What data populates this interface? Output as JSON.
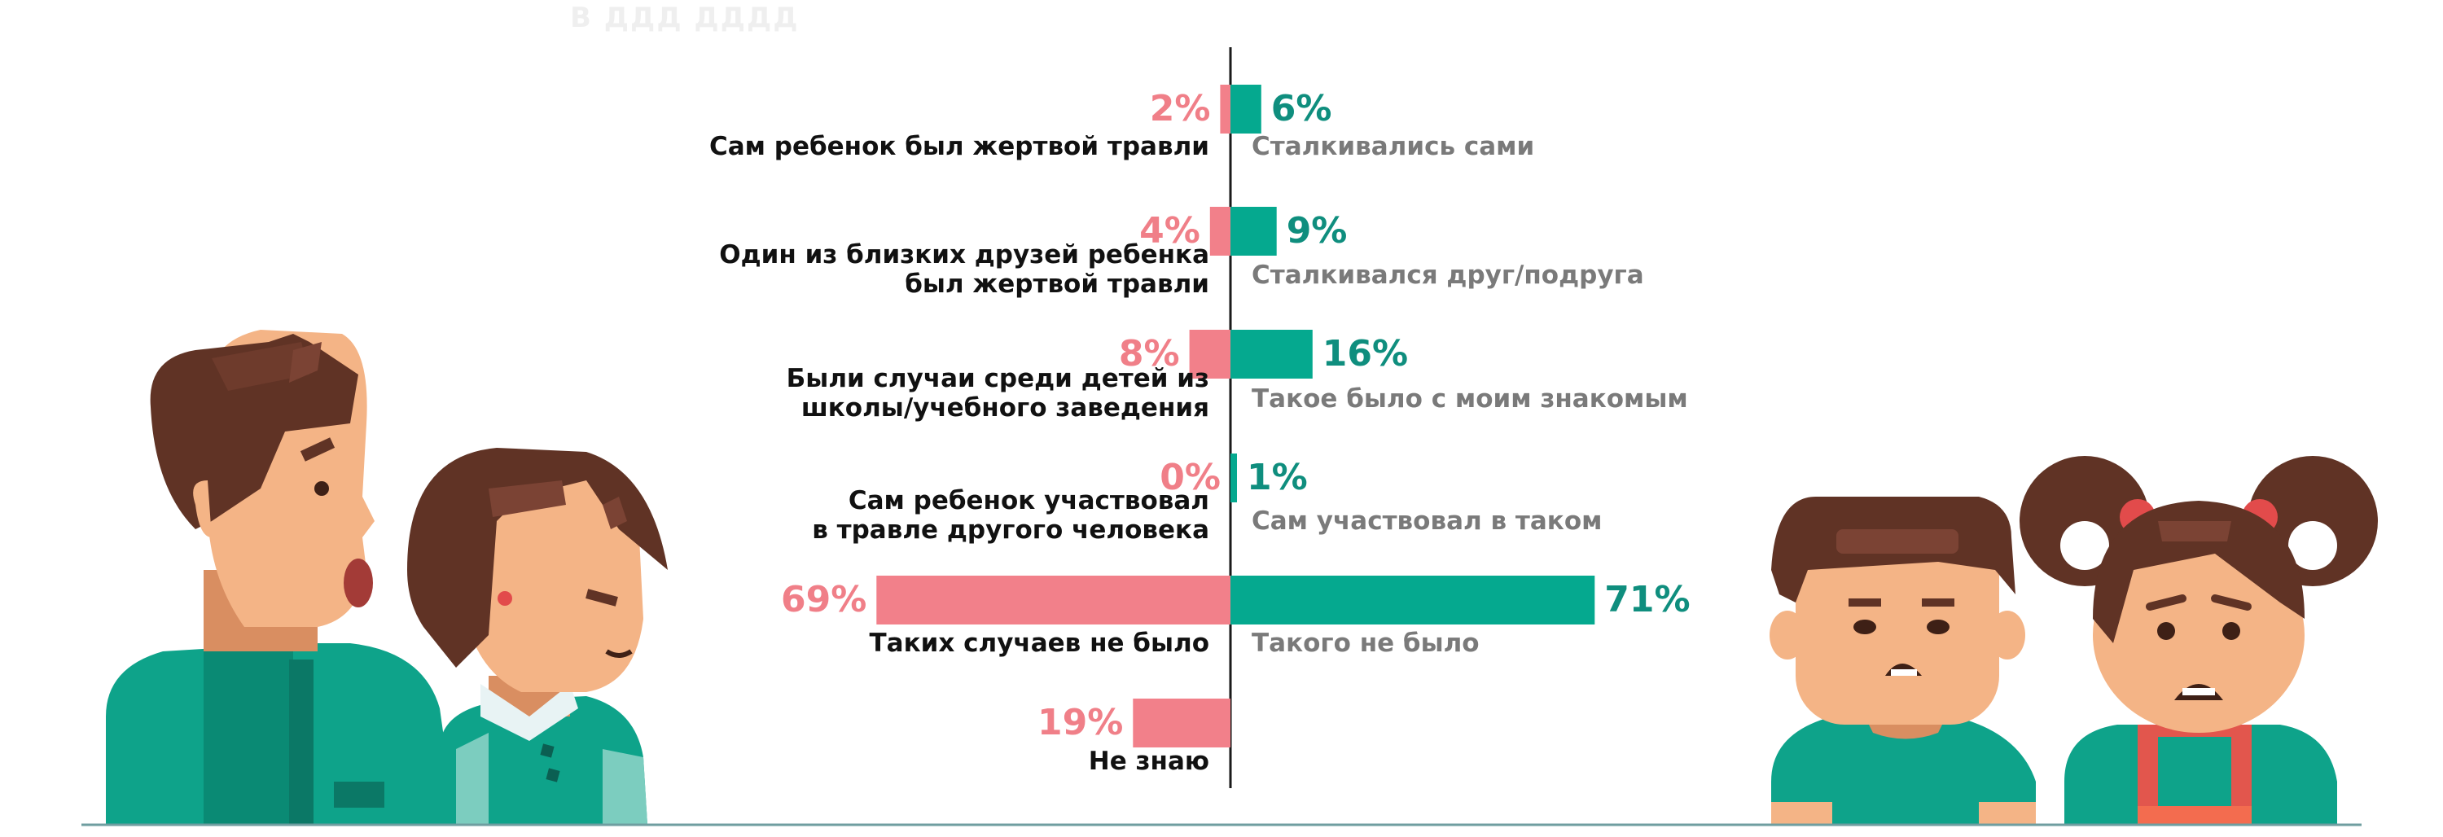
{
  "chart_data": {
    "type": "bar",
    "title": "",
    "orientation": "horizontal-diverging",
    "series": [
      {
        "name": "parents",
        "color": "#f2808a",
        "text_color": "#f07f88",
        "values": [
          2,
          4,
          8,
          0,
          69,
          19
        ],
        "value_labels": [
          "2%",
          "4%",
          "8%",
          "0%",
          "69%",
          "19%"
        ],
        "categories": [
          [
            "Сам ребенок был жертвой травли"
          ],
          [
            "Один из близких друзей ребенка",
            "был жертвой травли"
          ],
          [
            "Были случаи среди детей из",
            "школы/учебного заведения"
          ],
          [
            "Сам ребенок участвовал",
            "в травле другого человека"
          ],
          [
            "Таких случаев не было"
          ],
          [
            "Не знаю"
          ]
        ]
      },
      {
        "name": "children",
        "color": "#05a98f",
        "text_color": "#0f8e7e",
        "values": [
          6,
          9,
          16,
          1,
          71
        ],
        "value_labels": [
          "6%",
          "9%",
          "16%",
          "1%",
          "71%"
        ],
        "categories": [
          [
            "Сталкивались сами"
          ],
          [
            "Сталкивался друг/подруга"
          ],
          [
            "Такое было с моим знакомым"
          ],
          [
            "Сам участвовал в таком"
          ],
          [
            "Такого не было"
          ]
        ]
      }
    ],
    "xlim": [
      0,
      71
    ]
  },
  "decor": {
    "faded_title": "В ДДД ДДДД",
    "illustration_left": "parents-illustration",
    "illustration_right": "children-illustration"
  }
}
